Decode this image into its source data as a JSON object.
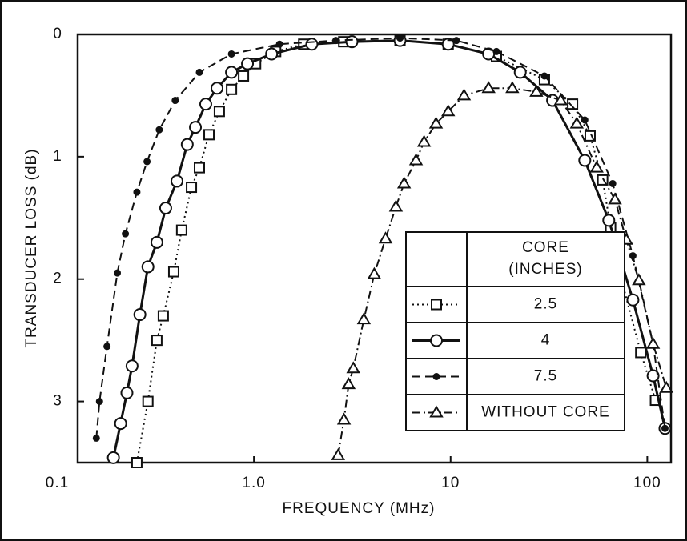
{
  "chart_data": {
    "type": "line",
    "xlabel": "FREQUENCY (MHz)",
    "ylabel": "TRANSDUCER LOSS (dB)",
    "xscale": "log",
    "xlim": [
      0.127,
      132
    ],
    "xticks": [
      0.1,
      {
        "value": 1,
        "label": "1.0"
      },
      10,
      100
    ],
    "ylim": [
      3.5,
      0
    ],
    "yticks": [
      0,
      1,
      2,
      3
    ],
    "grid": false,
    "legend_title": [
      "CORE",
      "(INCHES)"
    ],
    "series": [
      {
        "name": "2.5",
        "color": "#111111",
        "marker": "square",
        "line_style": "dotted",
        "x": [
          0.254,
          0.289,
          0.321,
          0.346,
          0.391,
          0.429,
          0.481,
          0.528,
          0.591,
          0.667,
          0.769,
          0.885,
          1.02,
          1.29,
          1.79,
          2.86,
          5.53,
          9.72,
          17.1,
          30,
          41.7,
          51.2,
          59.3,
          65.1,
          72.1,
          92.6,
          110
        ],
        "values": [
          3.5,
          3.0,
          2.5,
          2.3,
          1.94,
          1.6,
          1.25,
          1.09,
          0.82,
          0.63,
          0.45,
          0.34,
          0.24,
          0.14,
          0.08,
          0.06,
          0.05,
          0.08,
          0.18,
          0.37,
          0.57,
          0.83,
          1.19,
          1.58,
          1.94,
          2.6,
          2.99
        ]
      },
      {
        "name": "4",
        "color": "#111111",
        "marker": "circle",
        "line_style": "solid",
        "x": [
          0.193,
          0.21,
          0.226,
          0.24,
          0.263,
          0.289,
          0.321,
          0.356,
          0.406,
          0.458,
          0.504,
          0.569,
          0.649,
          0.769,
          0.927,
          1.23,
          1.97,
          3.15,
          5.53,
          9.72,
          15.6,
          22.6,
          33,
          48.1,
          63.7,
          84.5,
          107,
          123
        ],
        "values": [
          3.46,
          3.18,
          2.93,
          2.71,
          2.29,
          1.9,
          1.7,
          1.42,
          1.2,
          0.9,
          0.76,
          0.57,
          0.44,
          0.31,
          0.24,
          0.16,
          0.08,
          0.06,
          0.05,
          0.08,
          0.16,
          0.31,
          0.54,
          1.03,
          1.52,
          2.17,
          2.79,
          3.22
        ]
      },
      {
        "name": "7.5",
        "color": "#111111",
        "marker": "dot",
        "line_style": "dashed",
        "x": [
          0.158,
          0.164,
          0.179,
          0.202,
          0.222,
          0.254,
          0.286,
          0.33,
          0.398,
          0.528,
          0.769,
          1.35,
          2.61,
          5.53,
          10.7,
          17.1,
          30,
          48.1,
          66.7,
          84.5,
          107,
          123
        ],
        "values": [
          3.3,
          3.0,
          2.55,
          1.95,
          1.63,
          1.29,
          1.04,
          0.78,
          0.54,
          0.31,
          0.16,
          0.08,
          0.05,
          0.03,
          0.05,
          0.14,
          0.34,
          0.7,
          1.22,
          1.81,
          2.53,
          3.22
        ]
      },
      {
        "name": "WITHOUT CORE",
        "color": "#111111",
        "marker": "triangle",
        "line_style": "dashdot",
        "x": [
          2.68,
          2.87,
          3.03,
          3.2,
          3.62,
          4.09,
          4.67,
          5.27,
          5.8,
          6.67,
          7.33,
          8.43,
          9.72,
          11.7,
          15.6,
          20.6,
          27.3,
          36.3,
          43.8,
          55.3,
          68.5,
          78.2,
          90.6,
          107,
          125
        ],
        "values": [
          3.44,
          3.15,
          2.86,
          2.73,
          2.33,
          1.96,
          1.67,
          1.41,
          1.22,
          1.03,
          0.88,
          0.73,
          0.63,
          0.5,
          0.44,
          0.44,
          0.47,
          0.54,
          0.73,
          1.09,
          1.35,
          1.68,
          2.01,
          2.53,
          2.89
        ]
      }
    ]
  }
}
